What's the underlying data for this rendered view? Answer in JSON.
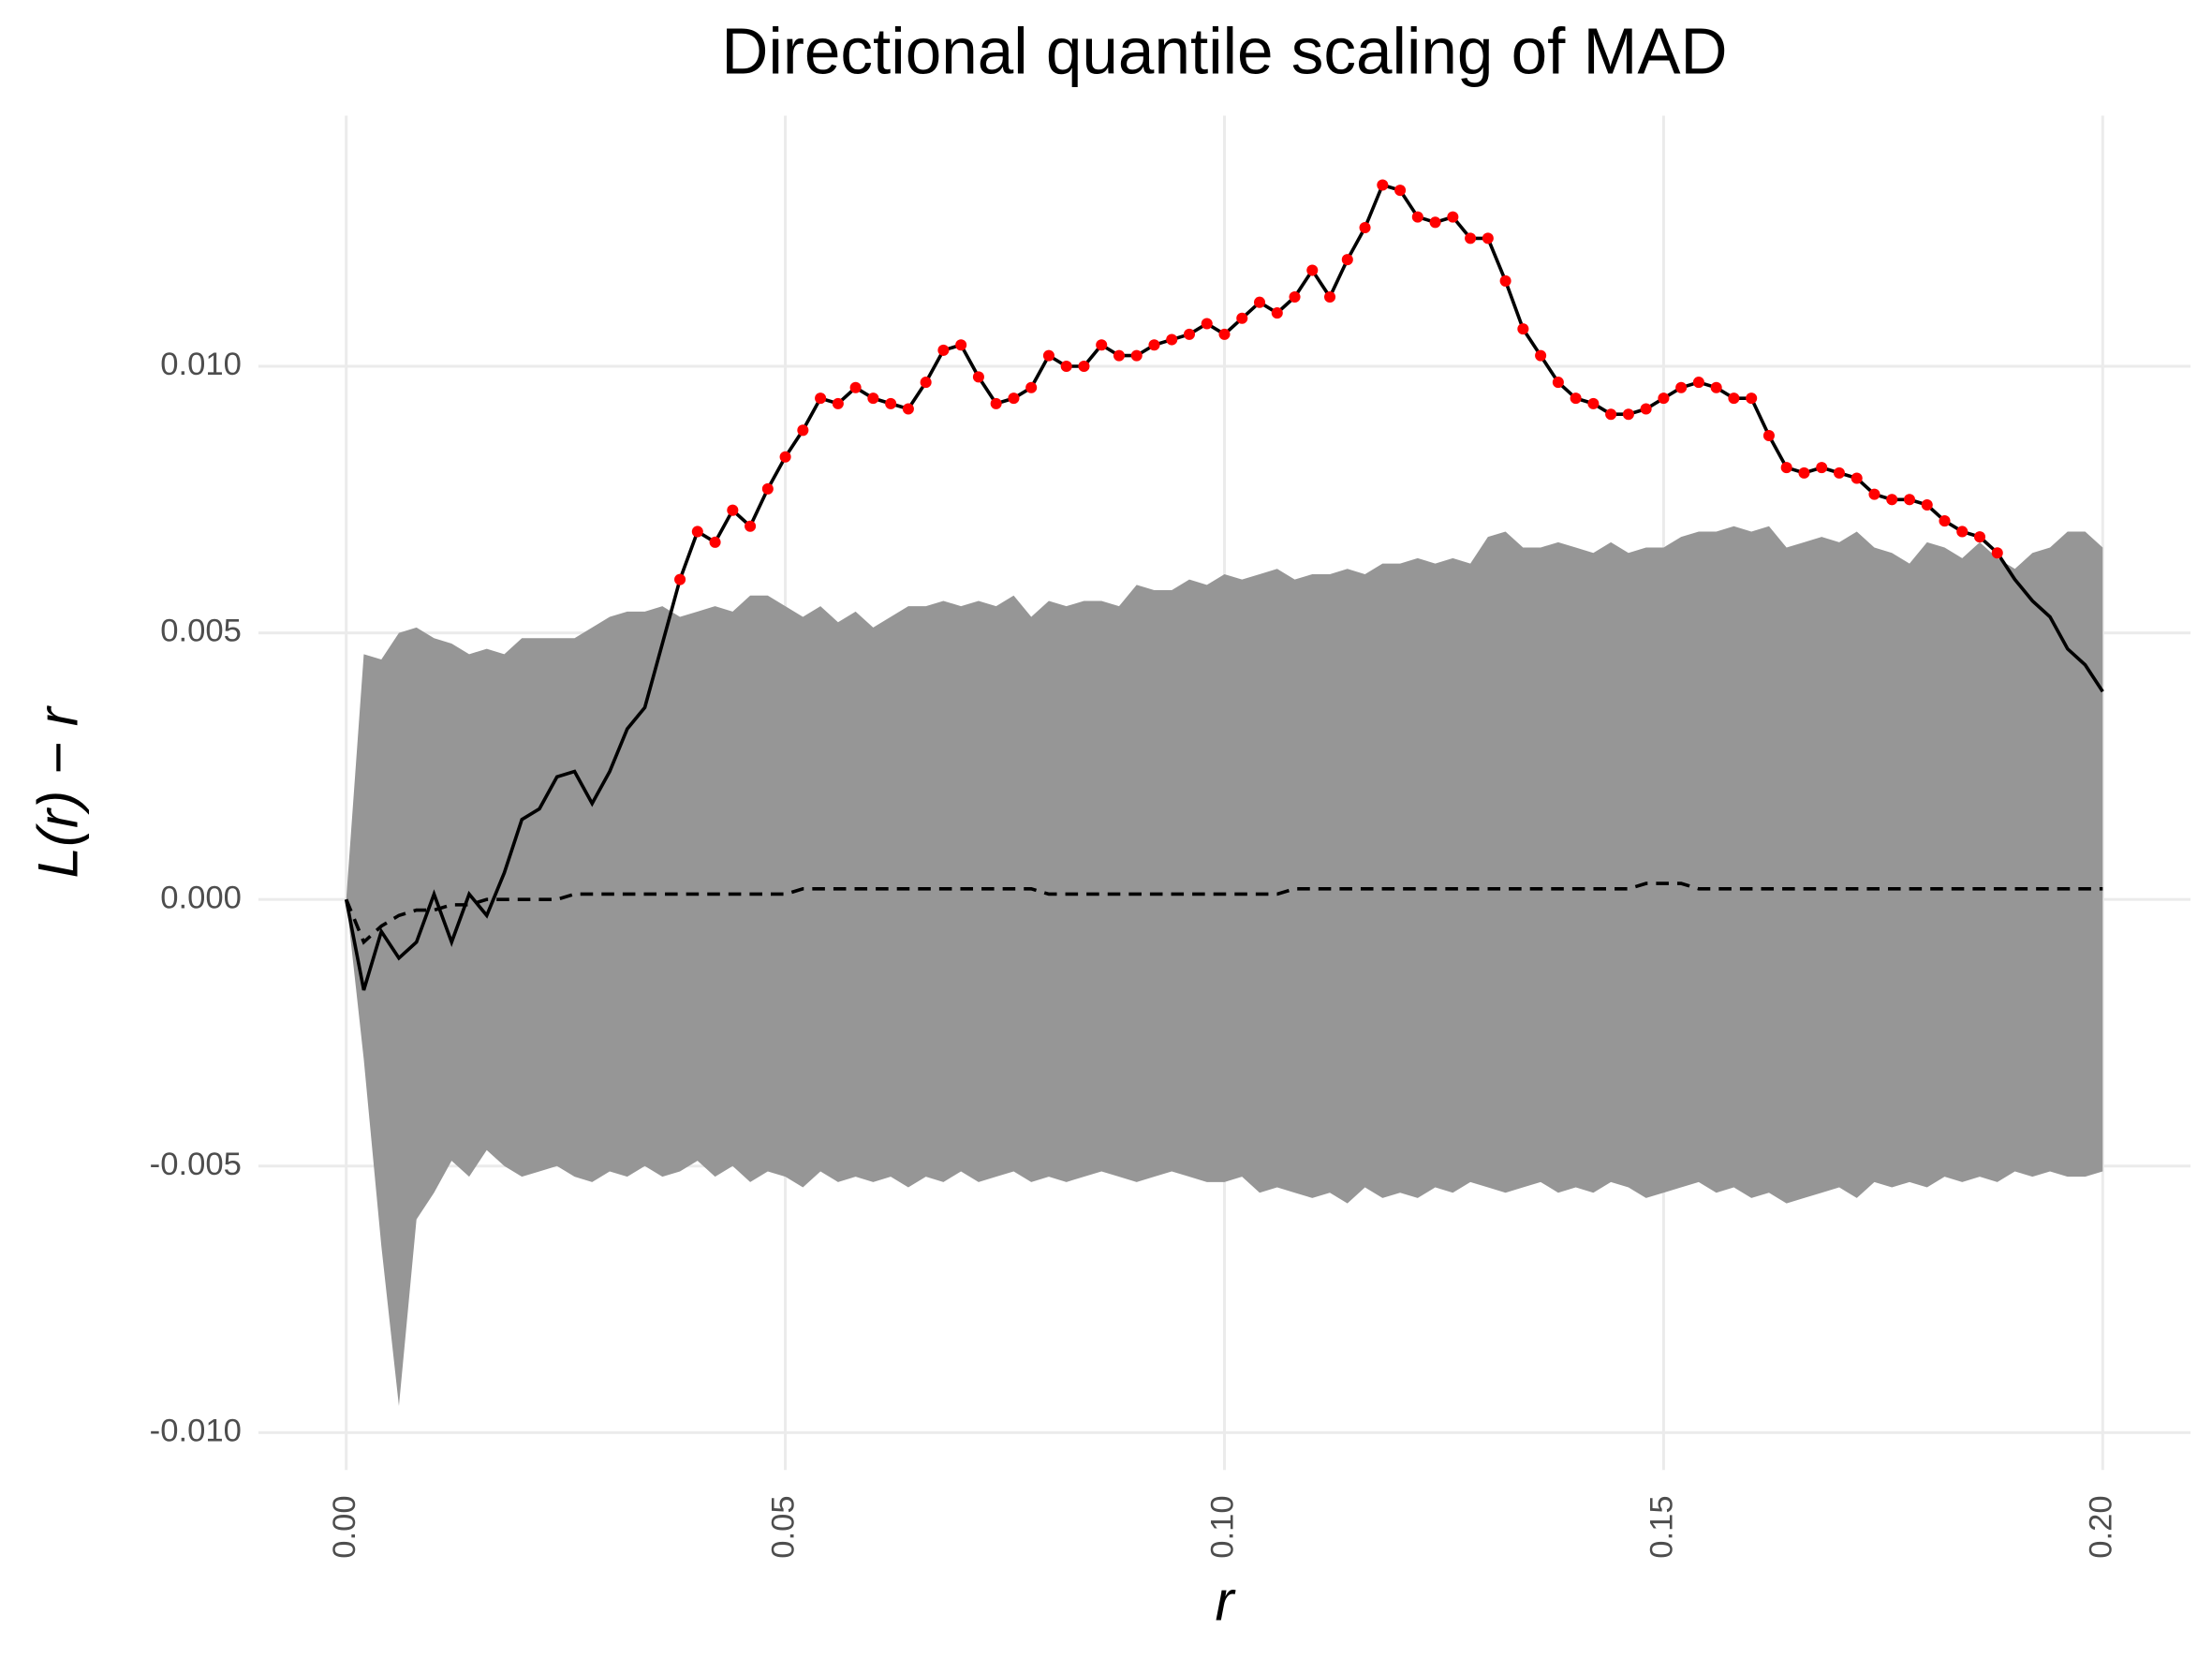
{
  "chart_data": {
    "type": "envelope",
    "title": "Directional quantile scaling of MAD",
    "x_label": "r",
    "y_label": "L(r) − r",
    "xlim": [
      -0.01,
      0.21
    ],
    "ylim": [
      -0.0107,
      0.0147
    ],
    "xticks": [
      {
        "value": 0,
        "label": "0.00"
      },
      {
        "value": 0.05,
        "label": "0.05"
      },
      {
        "value": 0.1,
        "label": "0.10"
      },
      {
        "value": 0.15,
        "label": "0.15"
      },
      {
        "value": 0.2,
        "label": "0.20"
      }
    ],
    "yticks": [
      {
        "value": -0.01,
        "label": "-0.010"
      },
      {
        "value": -0.005,
        "label": "-0.005"
      },
      {
        "value": 0,
        "label": "0.000"
      },
      {
        "value": 0.005,
        "label": "0.005"
      },
      {
        "value": 0.01,
        "label": "0.010"
      }
    ],
    "grid": true,
    "x": [
      0,
      0.002,
      0.004,
      0.006,
      0.008,
      0.01,
      0.012,
      0.014,
      0.016,
      0.018,
      0.02,
      0.022,
      0.024,
      0.026,
      0.028,
      0.03,
      0.032,
      0.034,
      0.036,
      0.038,
      0.04,
      0.042,
      0.044,
      0.046,
      0.048,
      0.05,
      0.052,
      0.054,
      0.056,
      0.058,
      0.06,
      0.062,
      0.064,
      0.066,
      0.068,
      0.07,
      0.072,
      0.074,
      0.076,
      0.078,
      0.08,
      0.082,
      0.084,
      0.086,
      0.088,
      0.09,
      0.092,
      0.094,
      0.096,
      0.098,
      0.1,
      0.102,
      0.104,
      0.106,
      0.108,
      0.11,
      0.112,
      0.114,
      0.116,
      0.118,
      0.12,
      0.122,
      0.124,
      0.126,
      0.128,
      0.13,
      0.132,
      0.134,
      0.136,
      0.138,
      0.14,
      0.142,
      0.144,
      0.146,
      0.148,
      0.15,
      0.152,
      0.154,
      0.156,
      0.158,
      0.16,
      0.162,
      0.164,
      0.166,
      0.168,
      0.17,
      0.172,
      0.174,
      0.176,
      0.178,
      0.18,
      0.182,
      0.184,
      0.186,
      0.188,
      0.19,
      0.192,
      0.194,
      0.196,
      0.198,
      0.2
    ],
    "envelope": {
      "color": "#969696",
      "upper": [
        0,
        0.0046,
        0.0045,
        0.005,
        0.0051,
        0.0049,
        0.0048,
        0.0046,
        0.0047,
        0.0046,
        0.0049,
        0.0049,
        0.0049,
        0.0049,
        0.0051,
        0.0053,
        0.0054,
        0.0054,
        0.0055,
        0.0053,
        0.0054,
        0.0055,
        0.0054,
        0.0057,
        0.0057,
        0.0055,
        0.0053,
        0.0055,
        0.0052,
        0.0054,
        0.0051,
        0.0053,
        0.0055,
        0.0055,
        0.0056,
        0.0055,
        0.0056,
        0.0055,
        0.0057,
        0.0053,
        0.0056,
        0.0055,
        0.0056,
        0.0056,
        0.0055,
        0.0059,
        0.0058,
        0.0058,
        0.006,
        0.0059,
        0.0061,
        0.006,
        0.0061,
        0.0062,
        0.006,
        0.0061,
        0.0061,
        0.0062,
        0.0061,
        0.0063,
        0.0063,
        0.0064,
        0.0063,
        0.0064,
        0.0063,
        0.0068,
        0.0069,
        0.0066,
        0.0066,
        0.0067,
        0.0066,
        0.0065,
        0.0067,
        0.0065,
        0.0066,
        0.0066,
        0.0068,
        0.0069,
        0.0069,
        0.007,
        0.0069,
        0.007,
        0.0066,
        0.0067,
        0.0068,
        0.0067,
        0.0069,
        0.0066,
        0.0065,
        0.0063,
        0.0067,
        0.0066,
        0.0064,
        0.0067,
        0.0064,
        0.0062,
        0.0065,
        0.0066,
        0.0069,
        0.0069,
        0.0066
      ],
      "lower": [
        0,
        -0.003,
        -0.0065,
        -0.0095,
        -0.006,
        -0.0055,
        -0.0049,
        -0.0052,
        -0.0047,
        -0.005,
        -0.0052,
        -0.0051,
        -0.005,
        -0.0052,
        -0.0053,
        -0.0051,
        -0.0052,
        -0.005,
        -0.0052,
        -0.0051,
        -0.0049,
        -0.0052,
        -0.005,
        -0.0053,
        -0.0051,
        -0.0052,
        -0.0054,
        -0.0051,
        -0.0053,
        -0.0052,
        -0.0053,
        -0.0052,
        -0.0054,
        -0.0052,
        -0.0053,
        -0.0051,
        -0.0053,
        -0.0052,
        -0.0051,
        -0.0053,
        -0.0052,
        -0.0053,
        -0.0052,
        -0.0051,
        -0.0052,
        -0.0053,
        -0.0052,
        -0.0051,
        -0.0052,
        -0.0053,
        -0.0053,
        -0.0052,
        -0.0055,
        -0.0054,
        -0.0055,
        -0.0056,
        -0.0055,
        -0.0057,
        -0.0054,
        -0.0056,
        -0.0055,
        -0.0056,
        -0.0054,
        -0.0055,
        -0.0053,
        -0.0054,
        -0.0055,
        -0.0054,
        -0.0053,
        -0.0055,
        -0.0054,
        -0.0055,
        -0.0053,
        -0.0054,
        -0.0056,
        -0.0055,
        -0.0054,
        -0.0053,
        -0.0055,
        -0.0054,
        -0.0056,
        -0.0055,
        -0.0057,
        -0.0056,
        -0.0055,
        -0.0054,
        -0.0056,
        -0.0053,
        -0.0054,
        -0.0053,
        -0.0054,
        -0.0052,
        -0.0053,
        -0.0052,
        -0.0053,
        -0.0051,
        -0.0052,
        -0.0051,
        -0.0052,
        -0.0052,
        -0.0051
      ]
    },
    "theoretical": {
      "color": "#000000",
      "dashed": true,
      "values": [
        0,
        -0.0008,
        -0.0005,
        -0.0003,
        -0.0002,
        -0.0002,
        -0.0001,
        -0.0001,
        0,
        0,
        0,
        0,
        0,
        0.0001,
        0.0001,
        0.0001,
        0.0001,
        0.0001,
        0.0001,
        0.0001,
        0.0001,
        0.0001,
        0.0001,
        0.0001,
        0.0001,
        0.0001,
        0.0002,
        0.0002,
        0.0002,
        0.0002,
        0.0002,
        0.0002,
        0.0002,
        0.0002,
        0.0002,
        0.0002,
        0.0002,
        0.0002,
        0.0002,
        0.0002,
        0.0001,
        0.0001,
        0.0001,
        0.0001,
        0.0001,
        0.0001,
        0.0001,
        0.0001,
        0.0001,
        0.0001,
        0.0001,
        0.0001,
        0.0001,
        0.0001,
        0.0002,
        0.0002,
        0.0002,
        0.0002,
        0.0002,
        0.0002,
        0.0002,
        0.0002,
        0.0002,
        0.0002,
        0.0002,
        0.0002,
        0.0002,
        0.0002,
        0.0002,
        0.0002,
        0.0002,
        0.0002,
        0.0002,
        0.0002,
        0.0003,
        0.0003,
        0.0003,
        0.0002,
        0.0002,
        0.0002,
        0.0002,
        0.0002,
        0.0002,
        0.0002,
        0.0002,
        0.0002,
        0.0002,
        0.0002,
        0.0002,
        0.0002,
        0.0002,
        0.0002,
        0.0002,
        0.0002,
        0.0002,
        0.0002,
        0.0002,
        0.0002,
        0.0002,
        0.0002,
        0.0002
      ]
    },
    "observed": {
      "color": "#000000",
      "highlight_color": "#ff0000",
      "values": [
        0,
        -0.0017,
        -0.0006,
        -0.0011,
        -0.0008,
        0.0001,
        -0.0008,
        0.0001,
        -0.0003,
        0.0005,
        0.0015,
        0.0017,
        0.0023,
        0.0024,
        0.0018,
        0.0024,
        0.0032,
        0.0036,
        0.0048,
        0.006,
        0.0069,
        0.0067,
        0.0073,
        0.007,
        0.0077,
        0.0083,
        0.0088,
        0.0094,
        0.0093,
        0.0096,
        0.0094,
        0.0093,
        0.0092,
        0.0097,
        0.0103,
        0.0104,
        0.0098,
        0.0093,
        0.0094,
        0.0096,
        0.0102,
        0.01,
        0.01,
        0.0104,
        0.0102,
        0.0102,
        0.0104,
        0.0105,
        0.0106,
        0.0108,
        0.0106,
        0.0109,
        0.0112,
        0.011,
        0.0113,
        0.0118,
        0.0113,
        0.012,
        0.0126,
        0.0134,
        0.0133,
        0.0128,
        0.0127,
        0.0128,
        0.0124,
        0.0124,
        0.0116,
        0.0107,
        0.0102,
        0.0097,
        0.0094,
        0.0093,
        0.0091,
        0.0091,
        0.0092,
        0.0094,
        0.0096,
        0.0097,
        0.0096,
        0.0094,
        0.0094,
        0.0087,
        0.0081,
        0.008,
        0.0081,
        0.008,
        0.0079,
        0.0076,
        0.0075,
        0.0075,
        0.0074,
        0.0071,
        0.0069,
        0.0068,
        0.0065,
        0.006,
        0.0056,
        0.0053,
        0.0047,
        0.0044,
        0.0039
      ]
    }
  }
}
